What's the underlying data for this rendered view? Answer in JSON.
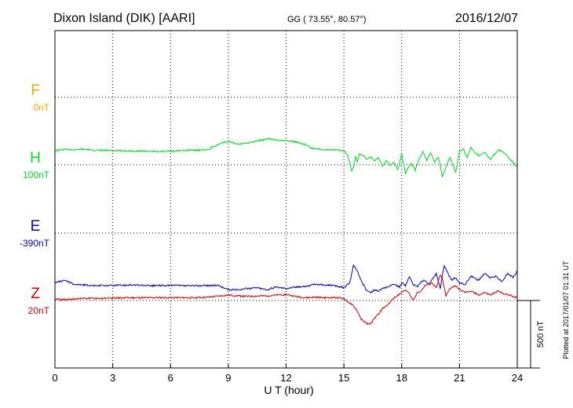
{
  "header": {
    "station": "Dixon Island (DIK)  [AARI]",
    "coordinates": "GG ( 73.55°,  80.57°)",
    "date": "2016/12/07"
  },
  "side_note": "Plotted at 2017/01/07 01:31  UT",
  "scale_label": "500 nT",
  "chart_data": {
    "type": "line",
    "xlabel": "U T (hour)",
    "xlim": [
      0,
      24
    ],
    "xticks": [
      0,
      3,
      6,
      9,
      12,
      15,
      18,
      21,
      24
    ],
    "grid": true,
    "scale_bar_nT": 500,
    "series": [
      {
        "name": "F",
        "offset_label": "0nT",
        "color": "#f5a800",
        "x": [],
        "y": []
      },
      {
        "name": "H",
        "offset_label": "100nT",
        "color": "#00dd22",
        "x": [
          0,
          0.5,
          1,
          1.5,
          2,
          3,
          4,
          5,
          5.5,
          6,
          6.5,
          7,
          7.5,
          8,
          8.2,
          8.5,
          9,
          9.3,
          9.6,
          10,
          10.3,
          10.6,
          10.9,
          11.1,
          11.3,
          11.6,
          12,
          12.3,
          12.6,
          13,
          13.3,
          13.6,
          14,
          14.3,
          14.6,
          15,
          15.2,
          15.4,
          15.5,
          15.6,
          15.7,
          15.8,
          16,
          16.2,
          16.4,
          16.6,
          16.8,
          17,
          17.2,
          17.4,
          17.6,
          17.8,
          18,
          18.2,
          18.3,
          18.5,
          18.7,
          18.9,
          19.1,
          19.3,
          19.5,
          19.7,
          19.9,
          20,
          20.1,
          20.3,
          20.5,
          20.8,
          21,
          21.2,
          21.4,
          21.6,
          21.8,
          22,
          22.3,
          22.6,
          23,
          23.3,
          23.6,
          23.8,
          24
        ],
        "y": [
          105,
          115,
          110,
          115,
          108,
          105,
          103,
          100,
          98,
          102,
          104,
          108,
          110,
          112,
          135,
          150,
          175,
          160,
          155,
          162,
          170,
          180,
          185,
          195,
          190,
          180,
          178,
          175,
          165,
          150,
          125,
          115,
          112,
          113,
          110,
          105,
          70,
          -40,
          -20,
          60,
          20,
          80,
          70,
          40,
          60,
          30,
          55,
          -10,
          30,
          -5,
          20,
          -40,
          80,
          -70,
          -30,
          10,
          -40,
          40,
          100,
          30,
          90,
          20,
          60,
          0,
          -90,
          -20,
          60,
          -60,
          100,
          120,
          50,
          130,
          90,
          70,
          95,
          40,
          110,
          90,
          45,
          15,
          -20
        ]
      },
      {
        "name": "E",
        "offset_label": "-390nT",
        "color": "#0000cc",
        "x": [
          0,
          0.5,
          1,
          1.5,
          2,
          3,
          4,
          5,
          6,
          7,
          8,
          8.5,
          9,
          9.5,
          10,
          10.5,
          11,
          11.5,
          12,
          12.5,
          13,
          13.5,
          14,
          14.5,
          15,
          15.3,
          15.5,
          15.7,
          15.9,
          16,
          16.2,
          16.4,
          16.6,
          16.8,
          17,
          17.3,
          17.6,
          17.9,
          18,
          18.2,
          18.4,
          18.6,
          18.8,
          19,
          19.2,
          19.4,
          19.6,
          19.8,
          20,
          20.2,
          20.4,
          20.6,
          20.8,
          21,
          21.3,
          21.6,
          22,
          22.3,
          22.6,
          22.9,
          23.2,
          23.5,
          23.8,
          24
        ],
        "y": [
          -370,
          -350,
          -380,
          -385,
          -390,
          -388,
          -385,
          -390,
          -388,
          -392,
          -388,
          -390,
          -420,
          -420,
          -410,
          -405,
          -420,
          -400,
          -410,
          -400,
          -395,
          -380,
          -385,
          -390,
          -405,
          -370,
          -240,
          -280,
          -350,
          -380,
          -430,
          -440,
          -420,
          -430,
          -410,
          -400,
          -380,
          -400,
          -370,
          -390,
          -320,
          -380,
          -400,
          -360,
          -350,
          -380,
          -340,
          -300,
          -410,
          -240,
          -300,
          -350,
          -330,
          -370,
          -380,
          -320,
          -350,
          -300,
          -330,
          -320,
          -360,
          -300,
          -330,
          -280
        ]
      },
      {
        "name": "Z",
        "offset_label": "20nT",
        "color": "#dd0000",
        "x": [
          0,
          0.5,
          1,
          1.5,
          2,
          3,
          4,
          5,
          6,
          7,
          8,
          9,
          10,
          11,
          12,
          12.5,
          13,
          13.5,
          14,
          14.5,
          15,
          15.3,
          15.5,
          15.7,
          15.9,
          16,
          16.2,
          16.4,
          16.6,
          16.8,
          17,
          17.3,
          17.6,
          18,
          18.2,
          18.4,
          18.6,
          18.8,
          19,
          19.2,
          19.4,
          19.6,
          19.8,
          20,
          20.1,
          20.3,
          20.5,
          20.8,
          21,
          21.3,
          21.6,
          22,
          22.3,
          22.6,
          23,
          23.3,
          23.6,
          24
        ],
        "y": [
          10,
          5,
          12,
          15,
          15,
          18,
          20,
          20,
          22,
          20,
          25,
          40,
          30,
          35,
          45,
          30,
          20,
          25,
          20,
          22,
          15,
          -20,
          -40,
          -80,
          -140,
          -150,
          -175,
          -170,
          -130,
          -100,
          -60,
          -30,
          20,
          60,
          80,
          50,
          0,
          60,
          70,
          110,
          120,
          130,
          90,
          190,
          170,
          30,
          90,
          110,
          80,
          60,
          70,
          40,
          60,
          40,
          70,
          50,
          40,
          20
        ]
      }
    ]
  }
}
